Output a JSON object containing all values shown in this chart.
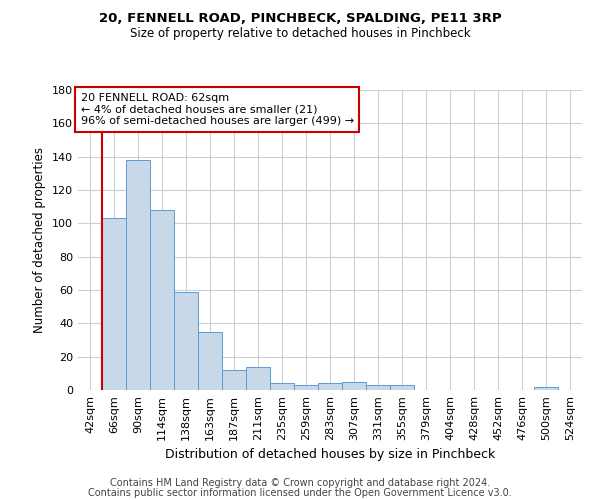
{
  "title1": "20, FENNELL ROAD, PINCHBECK, SPALDING, PE11 3RP",
  "title2": "Size of property relative to detached houses in Pinchbeck",
  "xlabel": "Distribution of detached houses by size in Pinchbeck",
  "ylabel": "Number of detached properties",
  "footer1": "Contains HM Land Registry data © Crown copyright and database right 2024.",
  "footer2": "Contains public sector information licensed under the Open Government Licence v3.0.",
  "bin_labels": [
    "42sqm",
    "66sqm",
    "90sqm",
    "114sqm",
    "138sqm",
    "163sqm",
    "187sqm",
    "211sqm",
    "235sqm",
    "259sqm",
    "283sqm",
    "307sqm",
    "331sqm",
    "355sqm",
    "379sqm",
    "404sqm",
    "428sqm",
    "452sqm",
    "476sqm",
    "500sqm",
    "524sqm"
  ],
  "values": [
    0,
    103,
    138,
    108,
    59,
    35,
    12,
    14,
    4,
    3,
    4,
    5,
    3,
    3,
    0,
    0,
    0,
    0,
    0,
    2,
    0
  ],
  "bar_color": "#c8d8e8",
  "bar_edge_color": "#5b9bd5",
  "red_line_index": 1,
  "property_label": "20 FENNELL ROAD: 62sqm",
  "annotation_line1": "← 4% of detached houses are smaller (21)",
  "annotation_line2": "96% of semi-detached houses are larger (499) →",
  "annotation_box_color": "#ffffff",
  "annotation_box_edge": "#cc0000",
  "red_line_color": "#cc0000",
  "ylim": [
    0,
    180
  ],
  "yticks": [
    0,
    20,
    40,
    60,
    80,
    100,
    120,
    140,
    160,
    180
  ],
  "background_color": "#ffffff",
  "grid_color": "#c8d0dc"
}
